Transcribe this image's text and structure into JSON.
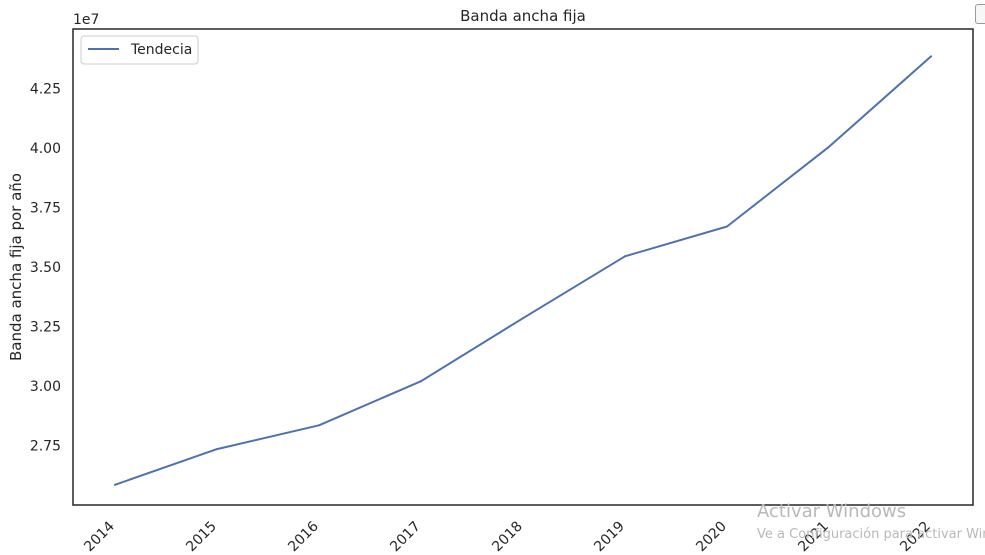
{
  "chart_data": {
    "type": "line",
    "title": "Banda ancha fija",
    "xlabel": "",
    "ylabel": "Banda ancha fija por año",
    "offset_text": "1e7",
    "x": [
      "2014",
      "2015",
      "2016",
      "2017",
      "2018",
      "2019",
      "2020",
      "2021",
      "2022"
    ],
    "series": [
      {
        "name": "Tendecia",
        "color": "#4c72b0",
        "values": [
          25.85,
          27.35,
          28.35,
          30.2,
          32.85,
          35.45,
          36.7,
          40.05,
          43.85
        ]
      }
    ],
    "y_scale_factor": 1000000.0,
    "ylim": [
      25.0,
      45.0
    ],
    "yticks": [
      27.5,
      30.0,
      32.5,
      35.0,
      37.5,
      40.0,
      42.5
    ],
    "ytick_labels": [
      "2.75",
      "3.00",
      "3.25",
      "3.50",
      "3.75",
      "4.00",
      "4.25"
    ],
    "grid": false,
    "legend_position": "upper-left"
  },
  "watermark": {
    "title": "Activar Windows",
    "subtitle": "Ve a Configuración para activar Windows."
  }
}
